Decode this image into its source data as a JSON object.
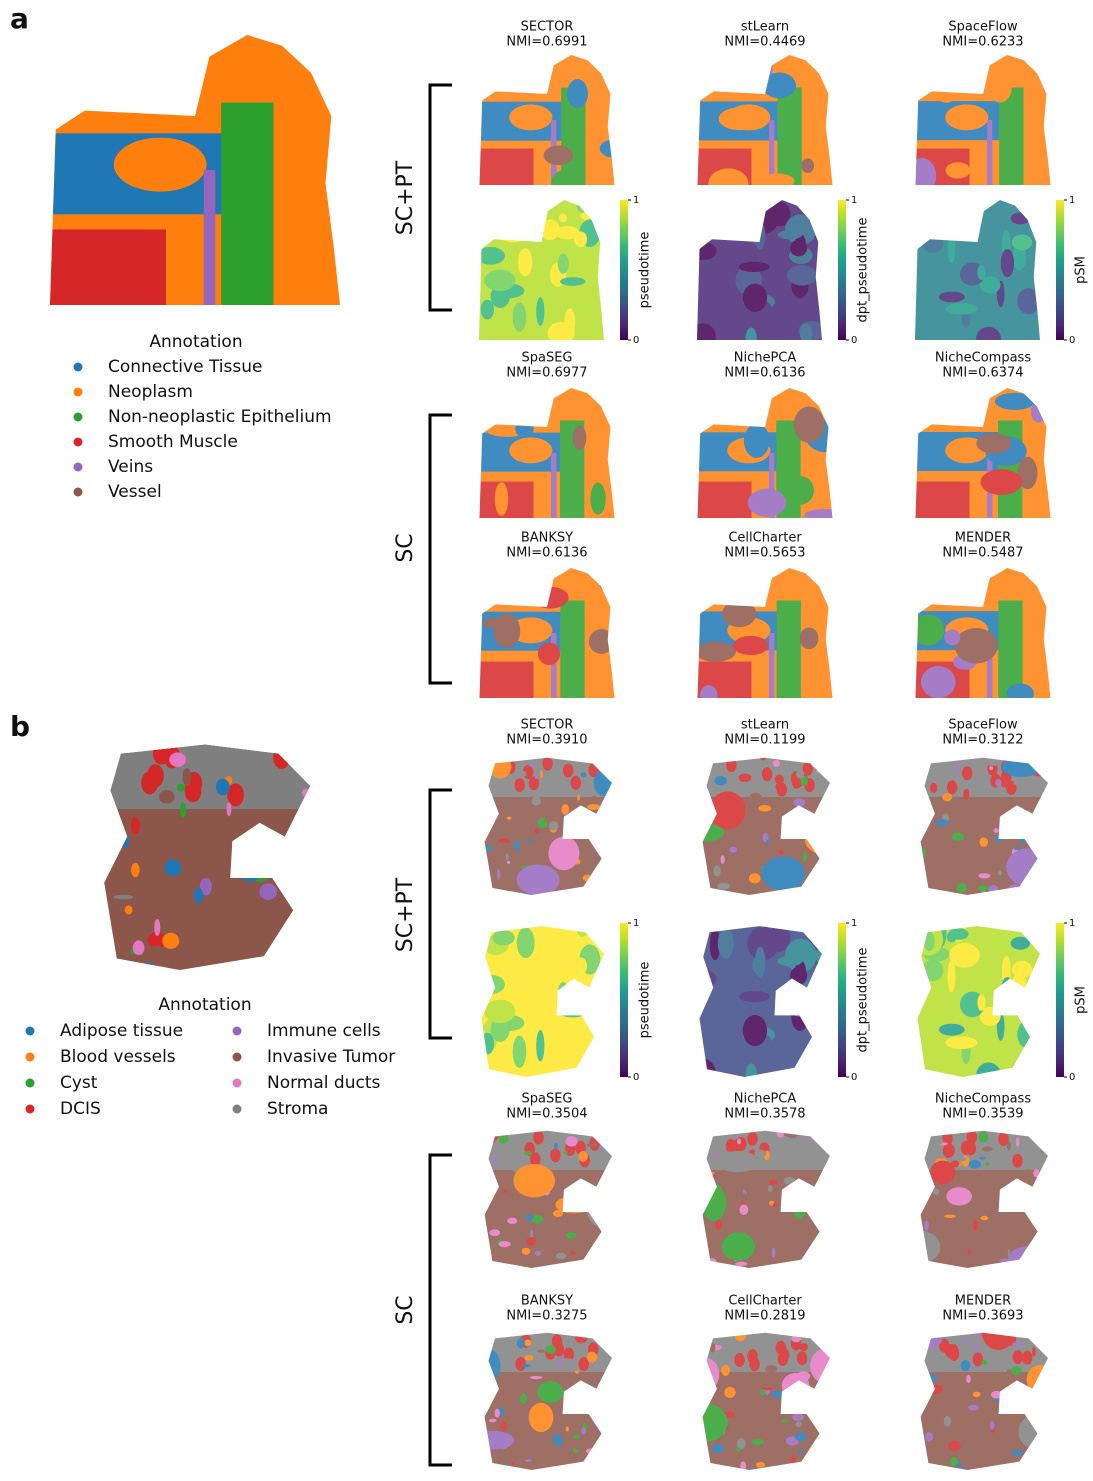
{
  "figure": {
    "panels": [
      {
        "label": "a",
        "legend": {
          "title": "Annotation",
          "items": [
            {
              "name": "Connective Tissue",
              "color": "#1f77b4"
            },
            {
              "name": "Neoplasm",
              "color": "#ff7f0e"
            },
            {
              "name": "Non-neoplastic Epithelium",
              "color": "#2ca02c"
            },
            {
              "name": "Smooth Muscle",
              "color": "#d62728"
            },
            {
              "name": "Veins",
              "color": "#9467bd"
            },
            {
              "name": "Vessel",
              "color": "#8c564b"
            }
          ]
        },
        "groups": [
          {
            "label": "SC+PT",
            "methods": [
              {
                "name": "SECTOR",
                "score": "NMI=0.6991"
              },
              {
                "name": "stLearn",
                "score": "NMI=0.4469"
              },
              {
                "name": "SpaceFlow",
                "score": "NMI=0.6233"
              }
            ],
            "colorbars": [
              {
                "label": "pseudotime",
                "ticks": [
                  1,
                  0
                ]
              },
              {
                "label": "dpt_pseudotime",
                "ticks": [
                  1,
                  0
                ]
              },
              {
                "label": "pSM",
                "ticks": [
                  1,
                  0
                ]
              }
            ]
          },
          {
            "label": "SC",
            "methods": [
              {
                "name": "SpaSEG",
                "score": "NMI=0.6977"
              },
              {
                "name": "NichePCA",
                "score": "NMI=0.6136"
              },
              {
                "name": "NicheCompass",
                "score": "NMI=0.6374"
              },
              {
                "name": "BANKSY",
                "score": "NMI=0.6136"
              },
              {
                "name": "CellCharter",
                "score": "NMI=0.5653"
              },
              {
                "name": "MENDER",
                "score": "NMI=0.5487"
              }
            ]
          }
        ]
      },
      {
        "label": "b",
        "legend": {
          "title": "Annotation",
          "items": [
            {
              "name": "Adipose tissue",
              "color": "#1f77b4"
            },
            {
              "name": "Blood vessels",
              "color": "#ff7f0e"
            },
            {
              "name": "Cyst",
              "color": "#2ca02c"
            },
            {
              "name": "DCIS",
              "color": "#d62728"
            },
            {
              "name": "Immune cells",
              "color": "#9467bd"
            },
            {
              "name": "Invasive Tumor",
              "color": "#8c564b"
            },
            {
              "name": "Normal ducts",
              "color": "#e377c2"
            },
            {
              "name": "Stroma",
              "color": "#7f7f7f"
            }
          ]
        },
        "groups": [
          {
            "label": "SC+PT",
            "methods": [
              {
                "name": "SECTOR",
                "score": "NMI=0.3910"
              },
              {
                "name": "stLearn",
                "score": "NMI=0.1199"
              },
              {
                "name": "SpaceFlow",
                "score": "NMI=0.3122"
              }
            ],
            "colorbars": [
              {
                "label": "pseudotime",
                "ticks": [
                  1,
                  0
                ]
              },
              {
                "label": "dpt_pseudotime",
                "ticks": [
                  1,
                  0
                ]
              },
              {
                "label": "pSM",
                "ticks": [
                  1,
                  0
                ]
              }
            ]
          },
          {
            "label": "SC",
            "methods": [
              {
                "name": "SpaSEG",
                "score": "NMI=0.3504"
              },
              {
                "name": "NichePCA",
                "score": "NMI=0.3578"
              },
              {
                "name": "NicheCompass",
                "score": "NMI=0.3539"
              },
              {
                "name": "BANKSY",
                "score": "NMI=0.3275"
              },
              {
                "name": "CellCharter",
                "score": "NMI=0.2819"
              },
              {
                "name": "MENDER",
                "score": "NMI=0.3693"
              }
            ]
          }
        ]
      }
    ]
  }
}
